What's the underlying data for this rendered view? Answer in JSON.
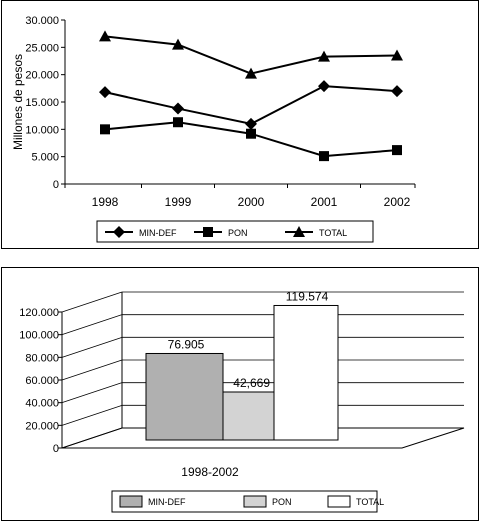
{
  "chart_data": [
    {
      "type": "line",
      "title": "",
      "xlabel": "",
      "ylabel": "Millones de pesos",
      "ylim": [
        0,
        30000
      ],
      "yticks": [
        "0",
        "5.000",
        "10.000",
        "15.000",
        "20.000",
        "25.000",
        "30.000"
      ],
      "categories": [
        "1998",
        "1999",
        "2000",
        "2001",
        "2002"
      ],
      "series": [
        {
          "name": "MIN-DEF",
          "marker": "diamond",
          "values": [
            16800,
            13800,
            11000,
            17900,
            17000
          ]
        },
        {
          "name": "PON",
          "marker": "square",
          "values": [
            10000,
            11300,
            9200,
            5100,
            6200
          ]
        },
        {
          "name": "TOTAL",
          "marker": "triangle",
          "values": [
            27000,
            25500,
            20200,
            23300,
            23500
          ]
        }
      ],
      "legend": "bottom",
      "grid": false
    },
    {
      "type": "bar",
      "title": "",
      "xlabel": "",
      "ylabel": "",
      "ylim": [
        0,
        120000
      ],
      "yticks": [
        "0",
        "20.000",
        "40.000",
        "60.000",
        "80.000",
        "100.000",
        "120.000"
      ],
      "categories": [
        "1998-2002"
      ],
      "series": [
        {
          "name": "MIN-DEF",
          "values": [
            76905
          ],
          "label": "76.905",
          "color": "#b0b0b0"
        },
        {
          "name": "PON",
          "values": [
            42669
          ],
          "label": "42,669",
          "color": "#d3d3d3"
        },
        {
          "name": "TOTAL",
          "values": [
            119574
          ],
          "label": "119.574",
          "color": "#ffffff"
        }
      ],
      "legend": "bottom",
      "grid": true,
      "style": "3d"
    }
  ]
}
